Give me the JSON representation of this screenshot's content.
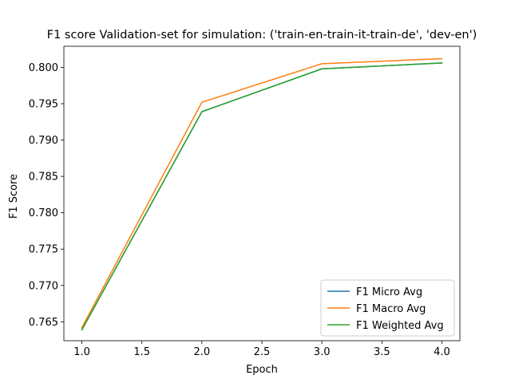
{
  "chart_data": {
    "type": "line",
    "title": "F1 score Validation-set for simulation: ('train-en-train-it-train-de', 'dev-en')",
    "xlabel": "Epoch",
    "ylabel": "F1 Score",
    "x": [
      1.0,
      2.0,
      3.0,
      4.0
    ],
    "xlim": [
      0.85,
      4.15
    ],
    "ylim": [
      0.7624,
      0.8029
    ],
    "xticks": [
      1.0,
      1.5,
      2.0,
      2.5,
      3.0,
      3.5,
      4.0
    ],
    "xtick_labels": [
      "1.0",
      "1.5",
      "2.0",
      "2.5",
      "3.0",
      "3.5",
      "4.0"
    ],
    "yticks": [
      0.765,
      0.77,
      0.775,
      0.78,
      0.785,
      0.79,
      0.795,
      0.8
    ],
    "ytick_labels": [
      "0.765",
      "0.770",
      "0.775",
      "0.780",
      "0.785",
      "0.790",
      "0.795",
      "0.800"
    ],
    "grid": false,
    "legend_position": "lower-right",
    "series": [
      {
        "name": "F1 Micro Avg",
        "color": "#1f77b4",
        "values": [
          0.7639,
          0.7939,
          0.7998,
          0.8006
        ]
      },
      {
        "name": "F1 Macro Avg",
        "color": "#ff7f0e",
        "values": [
          0.7642,
          0.7952,
          0.8005,
          0.8012
        ]
      },
      {
        "name": "F1 Weighted Avg",
        "color": "#2ca02c",
        "values": [
          0.7639,
          0.7939,
          0.7998,
          0.8006
        ]
      }
    ]
  }
}
